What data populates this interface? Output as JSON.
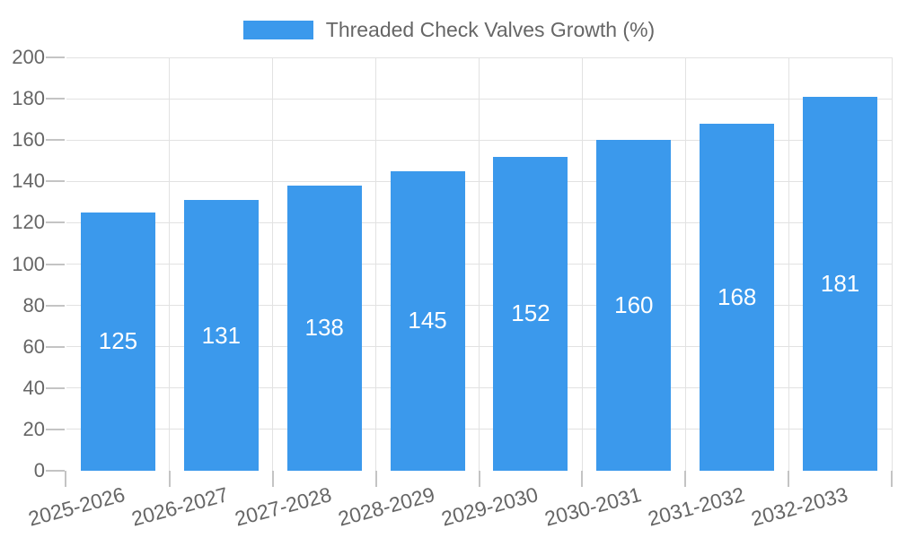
{
  "chart_data": {
    "type": "bar",
    "title": "Threaded Check Valves Growth (%)",
    "categories": [
      "2025-2026",
      "2026-2027",
      "2027-2028",
      "2028-2029",
      "2029-2030",
      "2030-2031",
      "2031-2032",
      "2032-2033"
    ],
    "values": [
      125,
      131,
      138,
      145,
      152,
      160,
      168,
      181
    ],
    "xlabel": "",
    "ylabel": "",
    "ylim": [
      0,
      200
    ],
    "yticks": [
      0,
      20,
      40,
      60,
      80,
      100,
      120,
      140,
      160,
      180,
      200
    ],
    "grid": "both",
    "legend_position": "top",
    "value_labels": "inside-center",
    "x_tick_rotation_deg": -15,
    "colors": {
      "bar": "#3B99EC",
      "value_label": "#FFFFFF",
      "axis_text": "#666666",
      "grid": "#E2E2E2",
      "tick": "#C4C4C4",
      "axis_y": "#8C8C8C",
      "axis_x": "#B3B3B3",
      "background": "#FFFFFF"
    }
  },
  "legend": {
    "entries": [
      {
        "label": "Threaded Check Valves Growth (%)",
        "swatch": "bar-color"
      }
    ]
  }
}
